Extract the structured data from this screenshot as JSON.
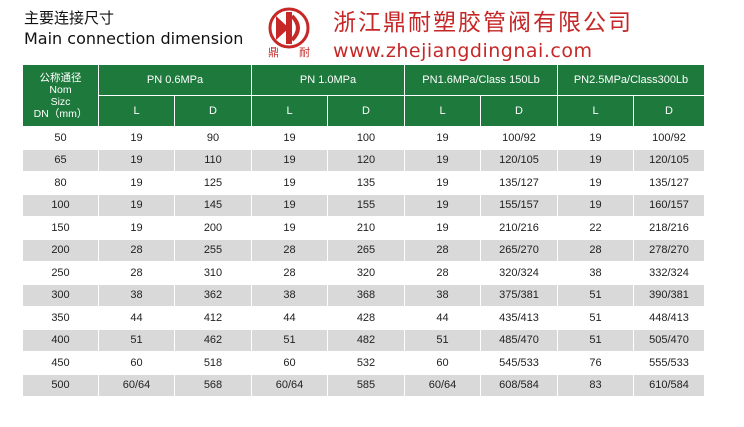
{
  "header": {
    "title_cn": "主要连接尺寸",
    "title_en": "Main connection dimension",
    "logo_chars": [
      "鼎",
      "耐"
    ],
    "company_name": "浙江鼎耐塑胶管阀有限公司",
    "company_url": "www.zhejiangdingnai.com"
  },
  "colors": {
    "header_green": "#1e7a3c",
    "brand_red": "#c62828",
    "row_gray": "#d9d9d9"
  },
  "table": {
    "dn_header": [
      "公称通径",
      "Nom",
      "Sizc",
      "DN（mm）"
    ],
    "groups": [
      "PN 0.6MPa",
      "PN 1.0MPa",
      "PN1.6MPa/Class 150Lb",
      "PN2.5MPa/Class300Lb"
    ],
    "sub_headers": [
      "L",
      "D",
      "L",
      "D",
      "L",
      "D",
      "L",
      "D"
    ],
    "rows": [
      [
        "50",
        "19",
        "90",
        "19",
        "100",
        "19",
        "100/92",
        "19",
        "100/92"
      ],
      [
        "65",
        "19",
        "110",
        "19",
        "120",
        "19",
        "120/105",
        "19",
        "120/105"
      ],
      [
        "80",
        "19",
        "125",
        "19",
        "135",
        "19",
        "135/127",
        "19",
        "135/127"
      ],
      [
        "100",
        "19",
        "145",
        "19",
        "155",
        "19",
        "155/157",
        "19",
        "160/157"
      ],
      [
        "150",
        "19",
        "200",
        "19",
        "210",
        "19",
        "210/216",
        "22",
        "218/216"
      ],
      [
        "200",
        "28",
        "255",
        "28",
        "265",
        "28",
        "265/270",
        "28",
        "278/270"
      ],
      [
        "250",
        "28",
        "310",
        "28",
        "320",
        "28",
        "320/324",
        "38",
        "332/324"
      ],
      [
        "300",
        "38",
        "362",
        "38",
        "368",
        "38",
        "375/381",
        "51",
        "390/381"
      ],
      [
        "350",
        "44",
        "412",
        "44",
        "428",
        "44",
        "435/413",
        "51",
        "448/413"
      ],
      [
        "400",
        "51",
        "462",
        "51",
        "482",
        "51",
        "485/470",
        "51",
        "505/470"
      ],
      [
        "450",
        "60",
        "518",
        "60",
        "532",
        "60",
        "545/533",
        "76",
        "555/533"
      ],
      [
        "500",
        "60/64",
        "568",
        "60/64",
        "585",
        "60/64",
        "608/584",
        "83",
        "610/584"
      ]
    ]
  }
}
